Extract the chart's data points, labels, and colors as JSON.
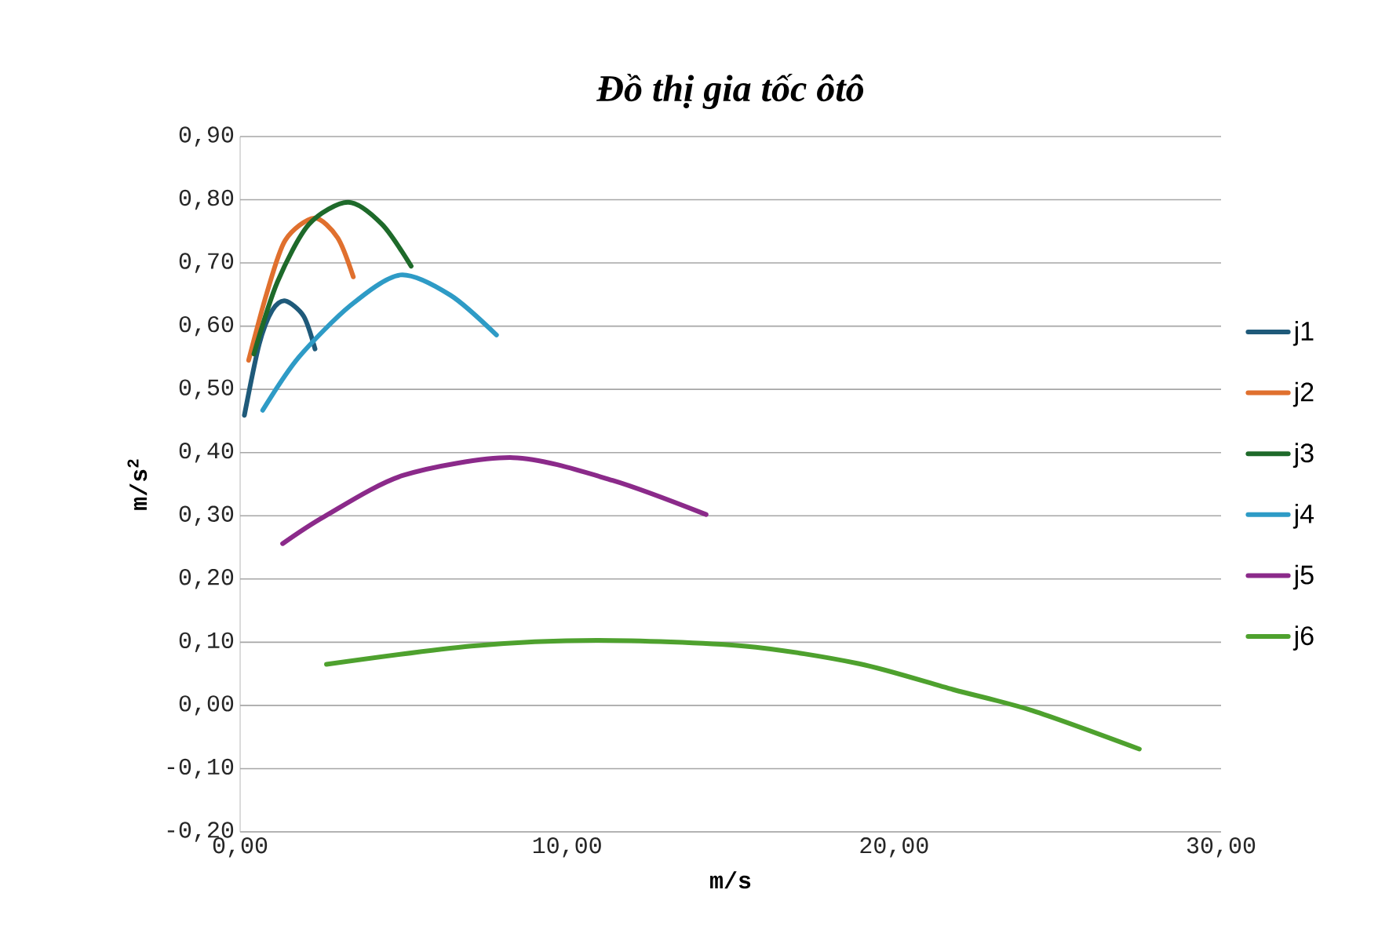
{
  "chart_data": {
    "type": "line",
    "title": "*Đồ thị gia tốc ôtô*",
    "xlabel": "m/s",
    "ylabel": "m/s$^{2}$",
    "xlim": [
      0,
      30
    ],
    "ylim": [
      -0.2,
      0.9
    ],
    "xticks": [
      {
        "value": 0,
        "label": "0,00"
      },
      {
        "value": 10,
        "label": "10,00"
      },
      {
        "value": 20,
        "label": "20,00"
      },
      {
        "value": 30,
        "label": "30,00"
      }
    ],
    "yticks": [
      {
        "value": -0.2,
        "label": "-0,20"
      },
      {
        "value": -0.1,
        "label": "-0,10"
      },
      {
        "value": 0,
        "label": "0,00"
      },
      {
        "value": 0.1,
        "label": "0,10"
      },
      {
        "value": 0.2,
        "label": "0,20"
      },
      {
        "value": 0.3,
        "label": "0,30"
      },
      {
        "value": 0.4,
        "label": "0,40"
      },
      {
        "value": 0.5,
        "label": "0,50"
      },
      {
        "value": 0.6,
        "label": "0,60"
      },
      {
        "value": 0.7,
        "label": "0,70"
      },
      {
        "value": 0.8,
        "label": "0,80"
      },
      {
        "value": 0.9,
        "label": "0,90"
      }
    ],
    "grid": "y",
    "legend": "right",
    "marker": "none",
    "line_style": "solid",
    "series": [
      {
        "name": "j1",
        "color": "#1f5a7a",
        "x": [
          0.13,
          0.58,
          0.98,
          1.38,
          1.94,
          2.29
        ],
        "values": [
          0.459,
          0.571,
          0.625,
          0.64,
          0.616,
          0.564
        ]
      },
      {
        "name": "j2",
        "color": "#e0702e",
        "x": [
          0.26,
          0.82,
          1.38,
          2.26,
          2.98,
          3.46
        ],
        "values": [
          0.546,
          0.653,
          0.736,
          0.771,
          0.74,
          0.678
        ]
      },
      {
        "name": "j3",
        "color": "#1e6a2a",
        "x": [
          0.42,
          1.14,
          2.1,
          3.3,
          4.34,
          5.23
        ],
        "values": [
          0.556,
          0.67,
          0.761,
          0.796,
          0.761,
          0.695
        ]
      },
      {
        "name": "j4",
        "color": "#2e9bc6",
        "x": [
          0.69,
          1.78,
          3.38,
          4.9,
          6.43,
          7.84
        ],
        "values": [
          0.467,
          0.55,
          0.633,
          0.681,
          0.649,
          0.586
        ]
      },
      {
        "name": "j5",
        "color": "#8b2a8a",
        "x": [
          1.3,
          2.58,
          4.99,
          8.35,
          11.39,
          14.25
        ],
        "values": [
          0.256,
          0.299,
          0.364,
          0.392,
          0.356,
          0.302
        ]
      },
      {
        "name": "j6",
        "color": "#4ea12e",
        "x": [
          2.64,
          7.07,
          10.91,
          15.4,
          18.93,
          21.81,
          24.22,
          27.5
        ],
        "values": [
          0.065,
          0.094,
          0.103,
          0.094,
          0.066,
          0.025,
          -0.008,
          -0.069
        ]
      }
    ]
  }
}
